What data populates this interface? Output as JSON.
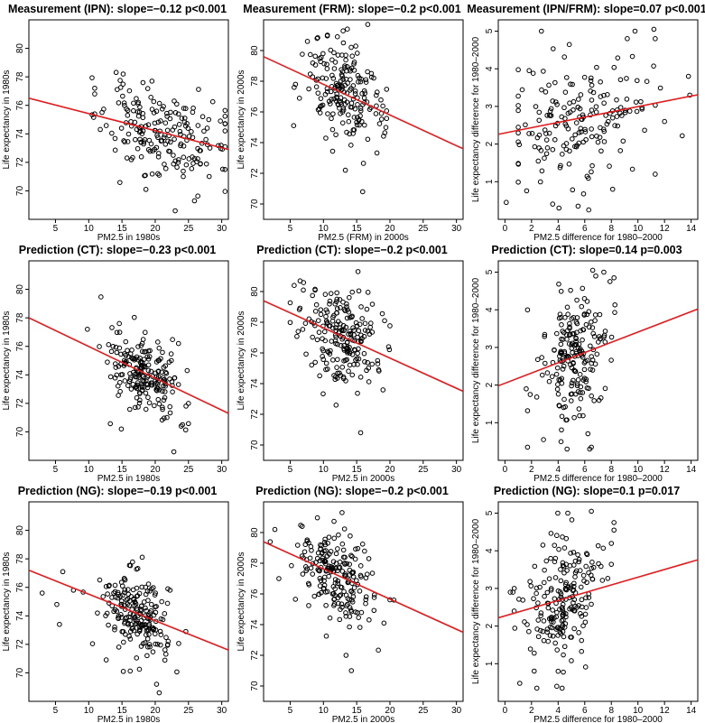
{
  "chart_data": [
    {
      "type": "scatter",
      "title": "Measurement (IPN): slope=−0.12 p<0.001",
      "xlabel": "PM2.5 in 1980s",
      "ylabel": "Life expectancy in 1980s",
      "xlim": [
        1,
        31
      ],
      "ylim": [
        68,
        82
      ],
      "xticks": [
        5,
        10,
        15,
        20,
        25,
        30
      ],
      "yticks": [
        70,
        72,
        74,
        76,
        78,
        80
      ],
      "line": [
        [
          1,
          76.5
        ],
        [
          31,
          72.9
        ]
      ],
      "cloud": {
        "x_mean": 21,
        "x_sd": 4.5,
        "x_min": 10.5,
        "x_max": 30.5,
        "y_sd": 1.5,
        "n": 190,
        "seed": 11,
        "mode": "normal"
      },
      "extra_points": [
        [
          10.9,
          77.2
        ],
        [
          10.9,
          76.8
        ],
        [
          10.9,
          75.4
        ],
        [
          12,
          75.5
        ],
        [
          23,
          68.6
        ],
        [
          25.9,
          69.3
        ],
        [
          18.6,
          70.1
        ],
        [
          20.6,
          71.1
        ],
        [
          20.4,
          71.2
        ],
        [
          29.8,
          74.9
        ],
        [
          29.9,
          73.2
        ]
      ]
    },
    {
      "type": "scatter",
      "title": "Measurement (FRM): slope=−0.2 p<0.001",
      "xlabel": "PM2.5 (FRM) in 2000s",
      "ylabel": "Life expectancy in 2000s",
      "xlim": [
        1,
        31
      ],
      "ylim": [
        69,
        82
      ],
      "xticks": [
        5,
        10,
        15,
        20,
        25,
        30
      ],
      "yticks": [
        70,
        72,
        74,
        76,
        78,
        80
      ],
      "line": [
        [
          1,
          79.6
        ],
        [
          31,
          73.6
        ]
      ],
      "cloud": {
        "x_mean": 13,
        "x_sd": 2.9,
        "x_min": 5.5,
        "x_max": 19.5,
        "y_sd": 1.6,
        "n": 190,
        "seed": 23,
        "mode": "normal"
      },
      "extra_points": [
        [
          5.8,
          77.8
        ],
        [
          5.6,
          77.6
        ],
        [
          7.8,
          77.5
        ],
        [
          15.9,
          70.8
        ],
        [
          13.3,
          72.2
        ],
        [
          13.6,
          81.4
        ],
        [
          12.1,
          80.9
        ],
        [
          13,
          80.5
        ]
      ]
    },
    {
      "type": "scatter",
      "title": "Measurement (IPN/FRM): slope=0.07 p<0.001",
      "xlabel": "PM2.5 difference for 1980–2000",
      "ylabel": "Life expectancy difference for 1980–2000",
      "xlim": [
        -0.5,
        14.5
      ],
      "ylim": [
        0,
        5.3
      ],
      "xticks": [
        0,
        2,
        4,
        6,
        8,
        10,
        12,
        14
      ],
      "yticks": [
        1,
        2,
        3,
        4,
        5
      ],
      "line": [
        [
          -0.5,
          2.26
        ],
        [
          14.5,
          3.31
        ]
      ],
      "cloud": {
        "x_mean": 5.8,
        "x_sd": 2.6,
        "x_min": 1,
        "x_max": 14,
        "y_sd": 0.85,
        "n": 180,
        "seed": 37,
        "mode": "normal"
      },
      "extra_points": [
        [
          0.1,
          0.45
        ],
        [
          5.5,
          0.35
        ],
        [
          6.3,
          0.25
        ],
        [
          8.1,
          0.8
        ],
        [
          11.2,
          5.05
        ],
        [
          11.3,
          4.8
        ],
        [
          9.2,
          4.8
        ],
        [
          13.8,
          3.8
        ],
        [
          13.9,
          3.3
        ],
        [
          12,
          2.6
        ],
        [
          11.3,
          1.2
        ]
      ]
    },
    {
      "type": "scatter",
      "title": "Prediction (CT): slope=−0.23 p<0.001",
      "xlabel": "PM2.5 in 1980s",
      "ylabel": "Life expectancy in 1980s",
      "xlim": [
        1,
        31
      ],
      "ylim": [
        68,
        82
      ],
      "xticks": [
        5,
        10,
        15,
        20,
        25,
        30
      ],
      "yticks": [
        70,
        72,
        74,
        76,
        78,
        80
      ],
      "line": [
        [
          1,
          78
        ],
        [
          31,
          71.3
        ]
      ],
      "cloud": {
        "x_mean": 18.5,
        "x_sd": 2.6,
        "x_min": 10,
        "x_max": 25,
        "y_sd": 1.4,
        "n": 200,
        "seed": 41,
        "mode": "normal"
      },
      "extra_points": [
        [
          9.8,
          77.2
        ],
        [
          14.9,
          70.2
        ],
        [
          22.8,
          68.6
        ],
        [
          23.9,
          70.4
        ],
        [
          24.1,
          70.5
        ],
        [
          24.8,
          74.3
        ],
        [
          23.5,
          76.2
        ],
        [
          14.6,
          77.6
        ]
      ]
    },
    {
      "type": "scatter",
      "title": "Prediction (CT): slope=−0.2 p<0.001",
      "xlabel": "PM2.5 in 2000s",
      "ylabel": "Life expectancy in 2000s",
      "xlim": [
        1,
        31
      ],
      "ylim": [
        69,
        82
      ],
      "xticks": [
        5,
        10,
        15,
        20,
        25,
        30
      ],
      "yticks": [
        70,
        72,
        74,
        76,
        78,
        80
      ],
      "line": [
        [
          1,
          79.4
        ],
        [
          31,
          73.5
        ]
      ],
      "cloud": {
        "x_mean": 12.5,
        "x_sd": 2.8,
        "x_min": 5,
        "x_max": 20,
        "y_sd": 1.5,
        "n": 200,
        "seed": 53,
        "mode": "normal"
      },
      "extra_points": [
        [
          5.6,
          80.4
        ],
        [
          6.2,
          77.4
        ],
        [
          15.6,
          70.8
        ],
        [
          15.2,
          81.3
        ],
        [
          19.2,
          78.1
        ],
        [
          19.8,
          76.4
        ],
        [
          18.3,
          74.9
        ],
        [
          11.9,
          72.6
        ]
      ]
    },
    {
      "type": "scatter",
      "title": "Prediction (CT): slope=0.14 p=0.003",
      "xlabel": "PM2.5 difference for 1980–2000",
      "ylabel": "Life expectancy difference for 1980–2000",
      "xlim": [
        -0.5,
        14.5
      ],
      "ylim": [
        0,
        5.3
      ],
      "xticks": [
        0,
        2,
        4,
        6,
        8,
        10,
        12,
        14
      ],
      "yticks": [
        1,
        2,
        3,
        4,
        5
      ],
      "line": [
        [
          -0.5,
          1.98
        ],
        [
          14.5,
          4.02
        ]
      ],
      "cloud": {
        "x_mean": 5.1,
        "x_sd": 1.3,
        "x_min": 1.7,
        "x_max": 8.5,
        "y_sd": 0.85,
        "n": 200,
        "seed": 61,
        "mode": "normal"
      },
      "extra_points": [
        [
          6.6,
          5.05
        ],
        [
          8.2,
          4.85
        ],
        [
          7.9,
          4.75
        ],
        [
          6.5,
          0.35
        ],
        [
          1.7,
          0.35
        ],
        [
          2.9,
          0.55
        ],
        [
          1.6,
          1.9
        ],
        [
          1.9,
          1.75
        ]
      ]
    },
    {
      "type": "scatter",
      "title": "Prediction (NG): slope=−0.19 p<0.001",
      "xlabel": "PM2.5 in 1980s",
      "ylabel": "Life expectancy in 1980s",
      "xlim": [
        1,
        31
      ],
      "ylim": [
        68,
        82
      ],
      "xticks": [
        5,
        10,
        15,
        20,
        25,
        30
      ],
      "yticks": [
        70,
        72,
        74,
        76,
        78,
        80
      ],
      "line": [
        [
          1,
          77.2
        ],
        [
          31,
          71.6
        ]
      ],
      "cloud": {
        "x_mean": 17.3,
        "x_sd": 2.7,
        "x_min": 8,
        "x_max": 24,
        "y_sd": 1.4,
        "n": 200,
        "seed": 71,
        "mode": "normal"
      },
      "extra_points": [
        [
          3,
          75.6
        ],
        [
          5.2,
          74.8
        ],
        [
          5.6,
          73.4
        ],
        [
          6.1,
          77.1
        ],
        [
          7.7,
          75.8
        ],
        [
          20.6,
          68.6
        ],
        [
          20.2,
          69.2
        ],
        [
          15.2,
          70.1
        ],
        [
          24.6,
          72.9
        ],
        [
          21.9,
          75.9
        ]
      ]
    },
    {
      "type": "scatter",
      "title": "Prediction (NG): slope=−0.2 p<0.001",
      "xlabel": "PM2.5 in 2000s",
      "ylabel": "Life expectancy in 2000s",
      "xlim": [
        1,
        31
      ],
      "ylim": [
        69,
        82
      ],
      "xticks": [
        5,
        10,
        15,
        20,
        25,
        30
      ],
      "yticks": [
        70,
        72,
        74,
        76,
        78,
        80
      ],
      "line": [
        [
          1,
          79.4
        ],
        [
          31,
          73.5
        ]
      ],
      "cloud": {
        "x_mean": 11.5,
        "x_sd": 3,
        "x_min": 2,
        "x_max": 20,
        "y_sd": 1.5,
        "n": 200,
        "seed": 83,
        "mode": "normal"
      },
      "extra_points": [
        [
          2,
          79.4
        ],
        [
          2.7,
          80.2
        ],
        [
          3.3,
          77
        ],
        [
          14.2,
          71
        ],
        [
          13.4,
          72
        ],
        [
          12.8,
          81.3
        ],
        [
          19.1,
          74.1
        ],
        [
          20.6,
          75.6
        ]
      ]
    },
    {
      "type": "scatter",
      "title": "Prediction (NG): slope=0.1 p=0.017",
      "xlabel": "PM2.5 difference for 1980–2000",
      "ylabel": "Life expectancy difference for 1980–2000",
      "xlim": [
        -0.5,
        14.5
      ],
      "ylim": [
        0,
        5.3
      ],
      "xticks": [
        0,
        2,
        4,
        6,
        8,
        10,
        12,
        14
      ],
      "yticks": [
        1,
        2,
        3,
        4,
        5
      ],
      "line": [
        [
          -0.5,
          2.22
        ],
        [
          14.5,
          3.76
        ]
      ],
      "cloud": {
        "x_mean": 4.3,
        "x_sd": 1.4,
        "x_min": 0.5,
        "x_max": 8,
        "y_sd": 0.85,
        "n": 200,
        "seed": 97,
        "mode": "normal"
      },
      "extra_points": [
        [
          0.4,
          2.9
        ],
        [
          0.6,
          2.9
        ],
        [
          0.7,
          3
        ],
        [
          6.5,
          5.05
        ],
        [
          8.2,
          4.75
        ],
        [
          8.2,
          4.55
        ],
        [
          2.4,
          0.35
        ],
        [
          3.9,
          0.4
        ],
        [
          4.3,
          0.35
        ],
        [
          4,
          0.8
        ]
      ]
    }
  ]
}
